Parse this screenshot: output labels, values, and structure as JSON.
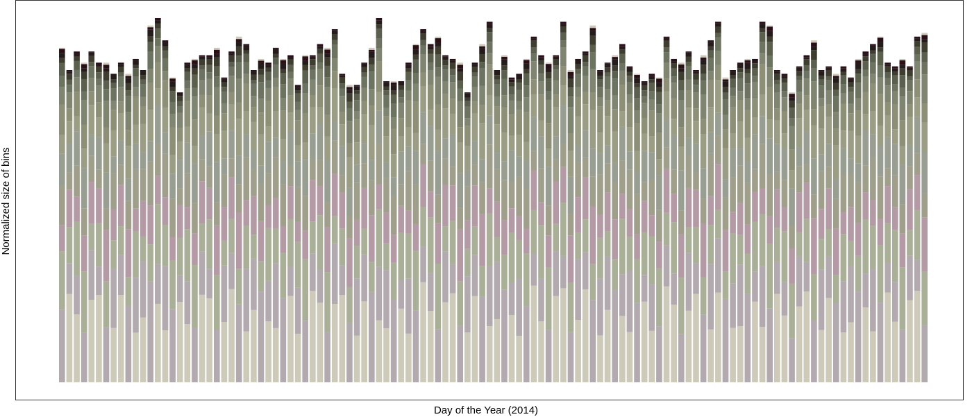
{
  "chart_data": {
    "type": "bar",
    "stacked": true,
    "title": "",
    "xlabel": "Day of the Year (2014)",
    "ylabel": "Normalized size of bins",
    "x_ticks_shown": false,
    "y_ticks_shown": false,
    "grid": false,
    "legend": "none",
    "palette": [
      "#cdcab9",
      "#b3aab0",
      "#aaaf97",
      "#b49aa4",
      "#a09f8c",
      "#999e92",
      "#9b9e84",
      "#8d9077",
      "#7f8570",
      "#6d7361",
      "#5a5f4e",
      "#3e3d2f",
      "#241b1b",
      "#2a0f19"
    ],
    "segment_proportions": [
      0.22,
      0.14,
      0.12,
      0.1,
      0.09,
      0.08,
      0.07,
      0.06,
      0.04,
      0.03,
      0.02,
      0.015,
      0.01,
      0.005
    ],
    "totals": [
      0.9,
      0.84,
      0.89,
      0.86,
      0.89,
      0.86,
      0.86,
      0.83,
      0.86,
      0.83,
      0.87,
      0.84,
      0.96,
      0.98,
      0.92,
      0.82,
      0.78,
      0.86,
      0.87,
      0.88,
      0.88,
      0.9,
      0.82,
      0.89,
      0.93,
      0.91,
      0.84,
      0.87,
      0.86,
      0.9,
      0.87,
      0.88,
      0.8,
      0.88,
      0.88,
      0.91,
      0.9,
      0.95,
      0.83,
      0.8,
      0.8,
      0.86,
      0.9,
      0.98,
      0.81,
      0.81,
      0.81,
      0.86,
      0.91,
      0.95,
      0.91,
      0.93,
      0.88,
      0.87,
      0.86,
      0.78,
      0.86,
      0.91,
      0.97,
      0.84,
      0.88,
      0.82,
      0.83,
      0.87,
      0.93,
      0.88,
      0.86,
      0.88,
      0.97,
      0.84,
      0.87,
      0.89,
      0.96,
      0.84,
      0.86,
      0.88,
      0.91,
      0.85,
      0.83,
      0.81,
      0.83,
      0.82,
      0.93,
      0.87,
      0.86,
      0.89,
      0.84,
      0.88,
      0.92,
      0.97,
      0.82,
      0.84,
      0.86,
      0.87,
      0.87,
      0.97,
      0.96,
      0.84,
      0.83,
      0.78,
      0.85,
      0.88,
      0.92,
      0.84,
      0.85,
      0.83,
      0.85,
      0.82,
      0.87,
      0.89,
      0.91,
      0.93,
      0.86,
      0.85,
      0.87,
      0.85,
      0.93,
      0.94
    ],
    "ylim": [
      0,
      1
    ]
  }
}
